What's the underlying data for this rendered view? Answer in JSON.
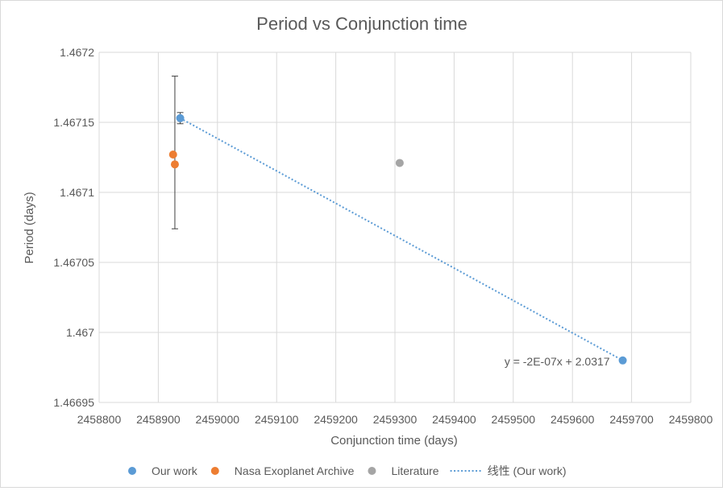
{
  "chart_data": {
    "type": "scatter",
    "title": "Period vs Conjunction time",
    "xlabel": "Conjunction time (days)",
    "ylabel": "Period (days)",
    "xlim": [
      2458800,
      2459800
    ],
    "ylim": [
      1.46695,
      1.4672
    ],
    "x_ticks": [
      2458800,
      2458900,
      2459000,
      2459100,
      2459200,
      2459300,
      2459400,
      2459500,
      2459600,
      2459700,
      2459800
    ],
    "x_tick_labels": [
      "2458800",
      "2458900",
      "2459000",
      "2459100",
      "2459200",
      "2459300",
      "2459400",
      "2459500",
      "2459600",
      "2459700",
      "2459800"
    ],
    "y_ticks": [
      1.46695,
      1.467,
      1.46705,
      1.4671,
      1.46715,
      1.4672
    ],
    "y_tick_labels": [
      "1.46695",
      "1.467",
      "1.46705",
      "1.4671",
      "1.46715",
      "1.4672"
    ],
    "grid": true,
    "legend_position": "bottom",
    "series": [
      {
        "name": "Our work",
        "color": "#5b9bd5",
        "points": [
          {
            "x": 2458937,
            "y": 1.467153,
            "err_y": 4e-06
          },
          {
            "x": 2459685,
            "y": 1.46698,
            "err_y": 0
          }
        ]
      },
      {
        "name": "Nasa Exoplanet Archive",
        "color": "#ed7d31",
        "points": [
          {
            "x": 2458925,
            "y": 1.467127
          },
          {
            "x": 2458928,
            "y": 1.46712
          }
        ]
      },
      {
        "name": "Literature",
        "color": "#a5a5a5",
        "points": [
          {
            "x": 2459308,
            "y": 1.467121
          }
        ]
      }
    ],
    "extra_error_bar": {
      "x": 2458928,
      "low": 1.467074,
      "high": 1.467183
    },
    "trendline": {
      "name": "线性 (Our work)",
      "color": "#5b9bd5",
      "equation": "y = -2E-07x + 2.0317",
      "x_start": 2458937,
      "x_end": 2459685
    }
  }
}
